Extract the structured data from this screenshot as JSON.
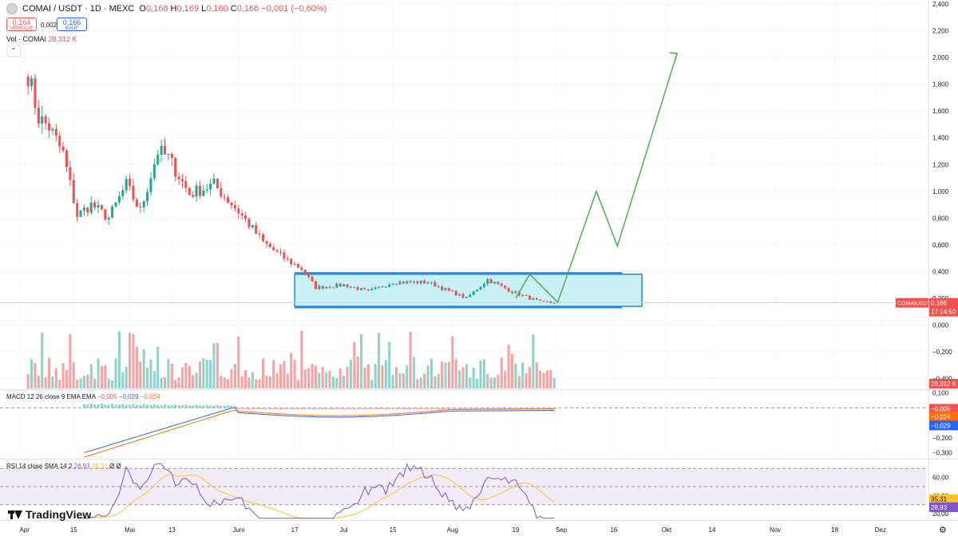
{
  "header": {
    "symbol": "COMAI / USDT · 1D · MEXC",
    "ohlc": [
      {
        "k": "O",
        "v": "0,168"
      },
      {
        "k": "H",
        "v": "0,169"
      },
      {
        "k": "L",
        "v": "0,160"
      },
      {
        "k": "C",
        "v": "0,166"
      },
      {
        "k": "",
        "v": "−0,001 (−0,60%)"
      }
    ],
    "sell_price": "0,164",
    "sell_label": "VERKAUF",
    "spread": "0,002",
    "buy_price": "0,166",
    "buy_label": "KAUF",
    "volume_label": "Vol · COMAI",
    "volume_value": "28,312 K"
  },
  "colors": {
    "up": "#26a69a",
    "down": "#ef5350",
    "up_volume": "#8fd3cb",
    "down_volume": "#f4a4a2",
    "macd_line": "#2962ff",
    "signal_line": "#ff6d00",
    "rsi_line": "#7e57c2",
    "rsi_sma": "#fbc02d",
    "box_fill": "#c9f0f5",
    "box_border": "#1e88e5",
    "projection": "#4caf50"
  },
  "chart_data": [
    {
      "type": "candlestick",
      "title": "COMAI / USDT · 1D · MEXC",
      "x_ticks": [
        "Apr",
        "15",
        "Mai",
        "13",
        "Juni",
        "17",
        "Jul",
        "15",
        "Aug",
        "19",
        "Sep",
        "16",
        "Okt",
        "14",
        "Nov",
        "18",
        "Dez"
      ],
      "x_range": [
        "2024-03-25",
        "2024-12-14"
      ],
      "y_ticks": [
        "2,400",
        "2,200",
        "2,000",
        "1,800",
        "1,600",
        "1,400",
        "1,200",
        "1,000",
        "0,800",
        "0,600",
        "0,400",
        "0,200",
        "0,000",
        "−0,200",
        "−0,400"
      ],
      "ylim": [
        -0.48,
        2.43
      ],
      "grid": true,
      "last_price_label": "COMAIUSDT",
      "last_price": "0,166",
      "countdown": "17:14:50",
      "volume_tag": "28,312 K",
      "series": [
        {
          "name": "COMAI / USDT",
          "anchors": [
            {
              "date": "2024-04-02",
              "close": 1.88
            },
            {
              "date": "2024-04-05",
              "close": 1.55
            },
            {
              "date": "2024-04-08",
              "close": 1.48
            },
            {
              "date": "2024-04-12",
              "close": 1.28
            },
            {
              "date": "2024-04-16",
              "close": 0.82
            },
            {
              "date": "2024-04-20",
              "close": 0.9
            },
            {
              "date": "2024-04-25",
              "close": 0.8
            },
            {
              "date": "2024-04-30",
              "close": 1.05
            },
            {
              "date": "2024-05-04",
              "close": 0.85
            },
            {
              "date": "2024-05-09",
              "close": 1.3
            },
            {
              "date": "2024-05-12",
              "close": 1.25
            },
            {
              "date": "2024-05-18",
              "close": 0.98
            },
            {
              "date": "2024-05-25",
              "close": 1.05
            },
            {
              "date": "2024-06-01",
              "close": 0.85
            },
            {
              "date": "2024-06-08",
              "close": 0.62
            },
            {
              "date": "2024-06-14",
              "close": 0.5
            },
            {
              "date": "2024-06-19",
              "close": 0.42
            },
            {
              "date": "2024-06-23",
              "close": 0.28
            },
            {
              "date": "2024-07-01",
              "close": 0.3
            },
            {
              "date": "2024-07-08",
              "close": 0.25
            },
            {
              "date": "2024-07-15",
              "close": 0.32
            },
            {
              "date": "2024-07-25",
              "close": 0.32
            },
            {
              "date": "2024-08-05",
              "close": 0.2
            },
            {
              "date": "2024-08-11",
              "close": 0.34
            },
            {
              "date": "2024-08-18",
              "close": 0.25
            },
            {
              "date": "2024-08-26",
              "close": 0.17
            },
            {
              "date": "2024-08-30",
              "close": 0.166
            }
          ]
        }
      ],
      "consolidation_box": {
        "date_from": "2024-06-17",
        "date_to": "2024-09-24",
        "price_low": 0.14,
        "price_high": 0.38
      },
      "projection": [
        {
          "date": "2024-08-19",
          "price": 0.2
        },
        {
          "date": "2024-08-23",
          "price": 0.38
        },
        {
          "date": "2024-08-31",
          "price": 0.17
        },
        {
          "date": "2024-09-11",
          "price": 1.0
        },
        {
          "date": "2024-09-17",
          "price": 0.59
        },
        {
          "date": "2024-10-04",
          "price": 2.03
        }
      ]
    },
    {
      "type": "line",
      "title": "MACD 12 26 close 9 EMA EMA",
      "legend_values": [
        "−0,005",
        "−0,029",
        "−0,024"
      ],
      "y_ticks": [
        "0,100",
        "0,000",
        "−0,100",
        "−0,200",
        "−0,300"
      ],
      "ylim": [
        -0.34,
        0.12
      ],
      "tags": [
        {
          "value": "−0,005",
          "series": "histogram"
        },
        {
          "value": "−0,024",
          "series": "signal"
        },
        {
          "value": "−0,029",
          "series": "macd"
        }
      ]
    },
    {
      "type": "line",
      "title": "RSI 14 close SMA 14 2",
      "legend_values": [
        "28,93",
        "35,31",
        "Ø",
        "Ø"
      ],
      "y_ticks": [
        "60,00",
        "40,00",
        "20,00"
      ],
      "ylim": [
        13,
        80
      ],
      "bands": [
        70,
        50,
        30
      ],
      "tags": [
        {
          "value": "35,31",
          "series": "sma"
        },
        {
          "value": "28,93",
          "series": "rsi"
        }
      ]
    }
  ],
  "footer": {
    "brand": "TradingView"
  }
}
